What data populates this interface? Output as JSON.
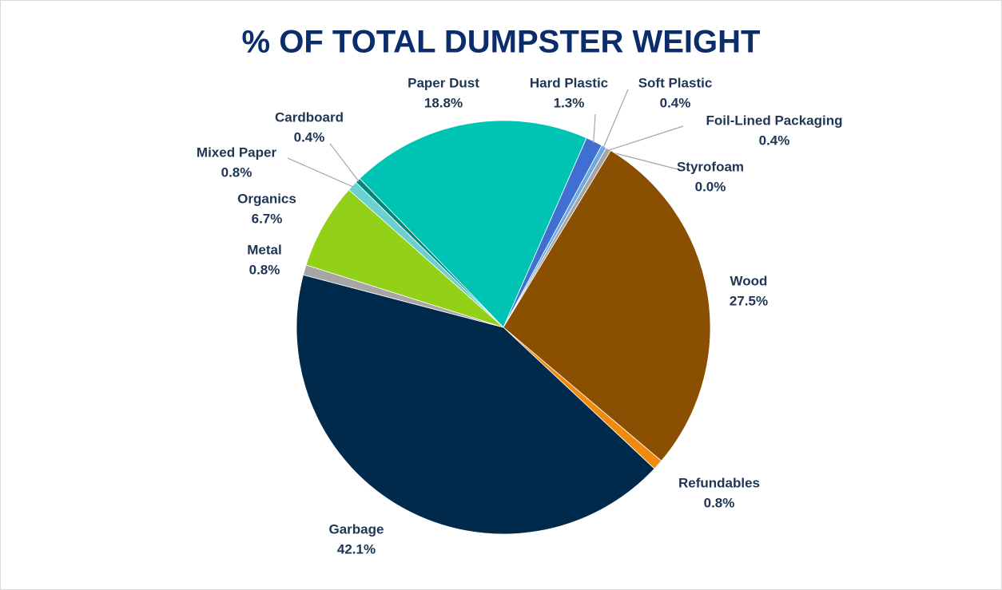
{
  "chart_data": {
    "type": "pie",
    "title": "% OF TOTAL DUMPSTER WEIGHT",
    "categories": [
      "Paper Dust",
      "Hard Plastic",
      "Soft Plastic",
      "Foil-Lined Packaging",
      "Styrofoam",
      "Wood",
      "Refundables",
      "Garbage",
      "Metal",
      "Organics",
      "Mixed Paper",
      "Cardboard"
    ],
    "values": [
      18.8,
      1.3,
      0.4,
      0.4,
      0.0,
      27.5,
      0.8,
      42.1,
      0.8,
      6.7,
      0.8,
      0.4
    ],
    "value_labels": [
      "18.8%",
      "1.3%",
      "0.4%",
      "0.4%",
      "0.0%",
      "27.5%",
      "0.8%",
      "42.1%",
      "0.8%",
      "6.7%",
      "0.8%",
      "0.4%"
    ],
    "colors": [
      "#00c4b3",
      "#3f6fd1",
      "#6fa8e0",
      "#a5a5a5",
      "#c9c9c9",
      "#8a4f00",
      "#f08a0c",
      "#002a4c",
      "#a6a6a6",
      "#92d118",
      "#6dd0d0",
      "#00877c"
    ]
  }
}
